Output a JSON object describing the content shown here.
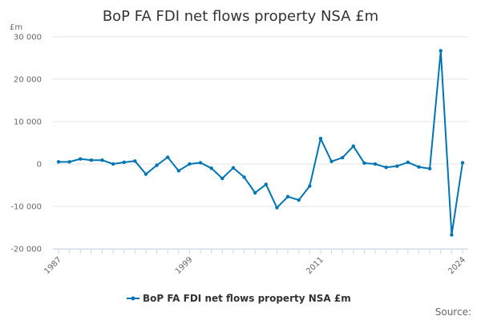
{
  "chart_data": {
    "type": "line",
    "title": "BoP FA FDI net flows property NSA £m",
    "ylabel": "£m",
    "xlabel": "",
    "ylim": [
      -20000,
      30000
    ],
    "yticks": [
      30000,
      20000,
      10000,
      0,
      -10000,
      -20000
    ],
    "ytick_labels": [
      "30 000",
      "20 000",
      "10 000",
      "0",
      "-10 000",
      "-20 000"
    ],
    "xlim": [
      1987,
      2024
    ],
    "xticks": [
      1987,
      1999,
      2011,
      2024
    ],
    "xtick_labels": [
      "1987",
      "1999",
      "2011",
      "2024"
    ],
    "color": "#0075b4",
    "series": [
      {
        "name": "BoP FA FDI net flows property NSA £m",
        "x": [
          1987,
          1988,
          1989,
          1990,
          1991,
          1992,
          1993,
          1994,
          1995,
          1996,
          1997,
          1998,
          1999,
          2000,
          2001,
          2002,
          2003,
          2004,
          2005,
          2006,
          2007,
          2008,
          2009,
          2010,
          2011,
          2012,
          2013,
          2014,
          2015,
          2016,
          2017,
          2018,
          2019,
          2020,
          2021,
          2022,
          2023,
          2024
        ],
        "values": [
          500,
          500,
          1200,
          900,
          900,
          0,
          400,
          700,
          -2400,
          -300,
          1600,
          -1600,
          0,
          300,
          -1000,
          -3400,
          -900,
          -3100,
          -6800,
          -4800,
          -10300,
          -7700,
          -8500,
          -5200,
          6000,
          600,
          1500,
          4200,
          200,
          0,
          -800,
          -500,
          400,
          -700,
          -1100,
          26700,
          -16700,
          300
        ]
      }
    ],
    "legend": {
      "label": "BoP FA FDI net flows property NSA £m",
      "position": "bottom"
    },
    "source_label": "Source:"
  }
}
